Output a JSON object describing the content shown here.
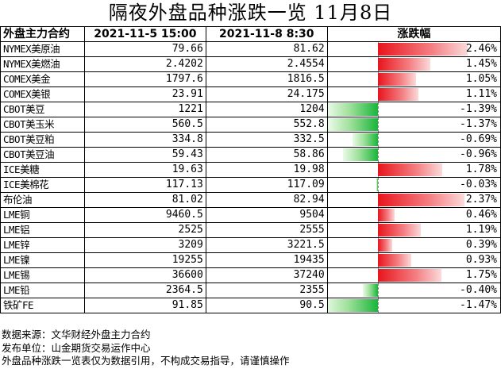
{
  "title": "隔夜外盘品种涨跌一览  11月8日",
  "headers": {
    "name": "外盘主力合约",
    "date1": "2021-11-5  15:00",
    "date2": "2021-11-8  8:30",
    "change": "涨跌幅"
  },
  "colors": {
    "up": "#e8141c",
    "down": "#19b53a"
  },
  "rows": [
    {
      "name": "NYMEX美原油",
      "v1": "79.66",
      "v2": "81.62",
      "pct": "2.46%",
      "value": 2.46
    },
    {
      "name": "NYMEX美燃油",
      "v1": "2.4202",
      "v2": "2.4554",
      "pct": "1.45%",
      "value": 1.45
    },
    {
      "name": "COMEX美金",
      "v1": "1797.6",
      "v2": "1816.5",
      "pct": "1.05%",
      "value": 1.05
    },
    {
      "name": "COMEX美银",
      "v1": "23.91",
      "v2": "24.175",
      "pct": "1.11%",
      "value": 1.11
    },
    {
      "name": "CBOT美豆",
      "v1": "1221",
      "v2": "1204",
      "pct": "-1.39%",
      "value": -1.39
    },
    {
      "name": "CBOT美玉米",
      "v1": "560.5",
      "v2": "552.8",
      "pct": "-1.37%",
      "value": -1.37
    },
    {
      "name": "CBOT美豆粕",
      "v1": "334.8",
      "v2": "332.5",
      "pct": "-0.69%",
      "value": -0.69
    },
    {
      "name": "CBOT美豆油",
      "v1": "59.43",
      "v2": "58.86",
      "pct": "-0.96%",
      "value": -0.96
    },
    {
      "name": "ICE美糖",
      "v1": "19.63",
      "v2": "19.98",
      "pct": "1.78%",
      "value": 1.78
    },
    {
      "name": "ICE美棉花",
      "v1": "117.13",
      "v2": "117.09",
      "pct": "-0.03%",
      "value": -0.03
    },
    {
      "name": "布伦油",
      "v1": "81.02",
      "v2": "82.94",
      "pct": "2.37%",
      "value": 2.37
    },
    {
      "name": "LME铜",
      "v1": "9460.5",
      "v2": "9504",
      "pct": "0.46%",
      "value": 0.46
    },
    {
      "name": "LME铝",
      "v1": "2525",
      "v2": "2555",
      "pct": "1.19%",
      "value": 1.19
    },
    {
      "name": "LME锌",
      "v1": "3209",
      "v2": "3221.5",
      "pct": "0.39%",
      "value": 0.39
    },
    {
      "name": "LME镍",
      "v1": "19255",
      "v2": "19435",
      "pct": "0.93%",
      "value": 0.93
    },
    {
      "name": "LME锡",
      "v1": "36600",
      "v2": "37240",
      "pct": "1.75%",
      "value": 1.75
    },
    {
      "name": "LME铅",
      "v1": "2364.5",
      "v2": "2355",
      "pct": "-0.40%",
      "value": -0.4
    },
    {
      "name": "铁矿FE",
      "v1": "91.85",
      "v2": "90.5",
      "pct": "-1.47%",
      "value": -1.47
    }
  ],
  "notes": [
    "数据来源：文华财经外盘主力合约",
    "发布单位：山金期货交易运作中心",
    "外盘品种涨跌一览表仅为数据引用，不构成交易指导，请谨慎操作"
  ]
}
